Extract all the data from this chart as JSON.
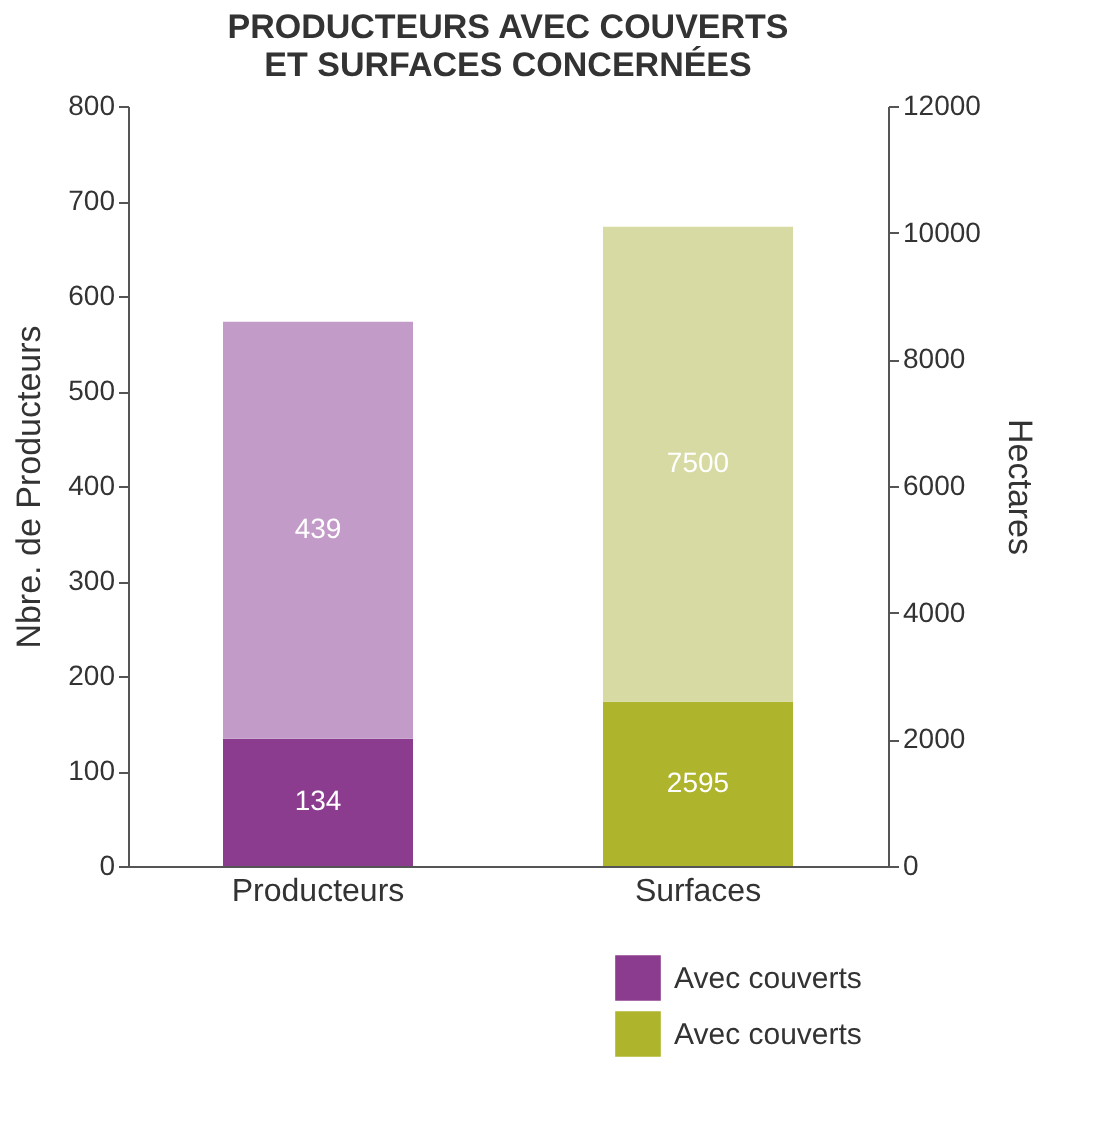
{
  "chart_data": {
    "type": "bar",
    "title": "PRODUCTEURS AVEC COUVERTS\nET SURFACES CONCERNÉES",
    "ylabel": "Nbre. de Producteurs",
    "y2label": "Hectares",
    "categories": [
      "Producteurs",
      "Surfaces"
    ],
    "stacked": true,
    "data_labels": true,
    "grid": false,
    "legend": "bottom right",
    "ylim": [
      0,
      800
    ],
    "yticks": [
      0,
      100,
      200,
      300,
      400,
      500,
      600,
      700,
      800
    ],
    "y2lim": [
      0,
      12000
    ],
    "y2ticks": [
      0,
      2000,
      4000,
      6000,
      8000,
      10000,
      12000
    ],
    "series": [
      {
        "name": "Avec couverts",
        "color": "#8b3c8e",
        "values": [
          134,
          null
        ]
      },
      {
        "color": "#c39bc8",
        "values": [
          439,
          null
        ]
      },
      {
        "name": "Avec couverts",
        "color": "#aeb42c",
        "values": [
          null,
          2595
        ],
        "axis": "y2"
      },
      {
        "color": "#d7daa2",
        "values": [
          null,
          7500
        ],
        "axis": "y2"
      }
    ]
  }
}
